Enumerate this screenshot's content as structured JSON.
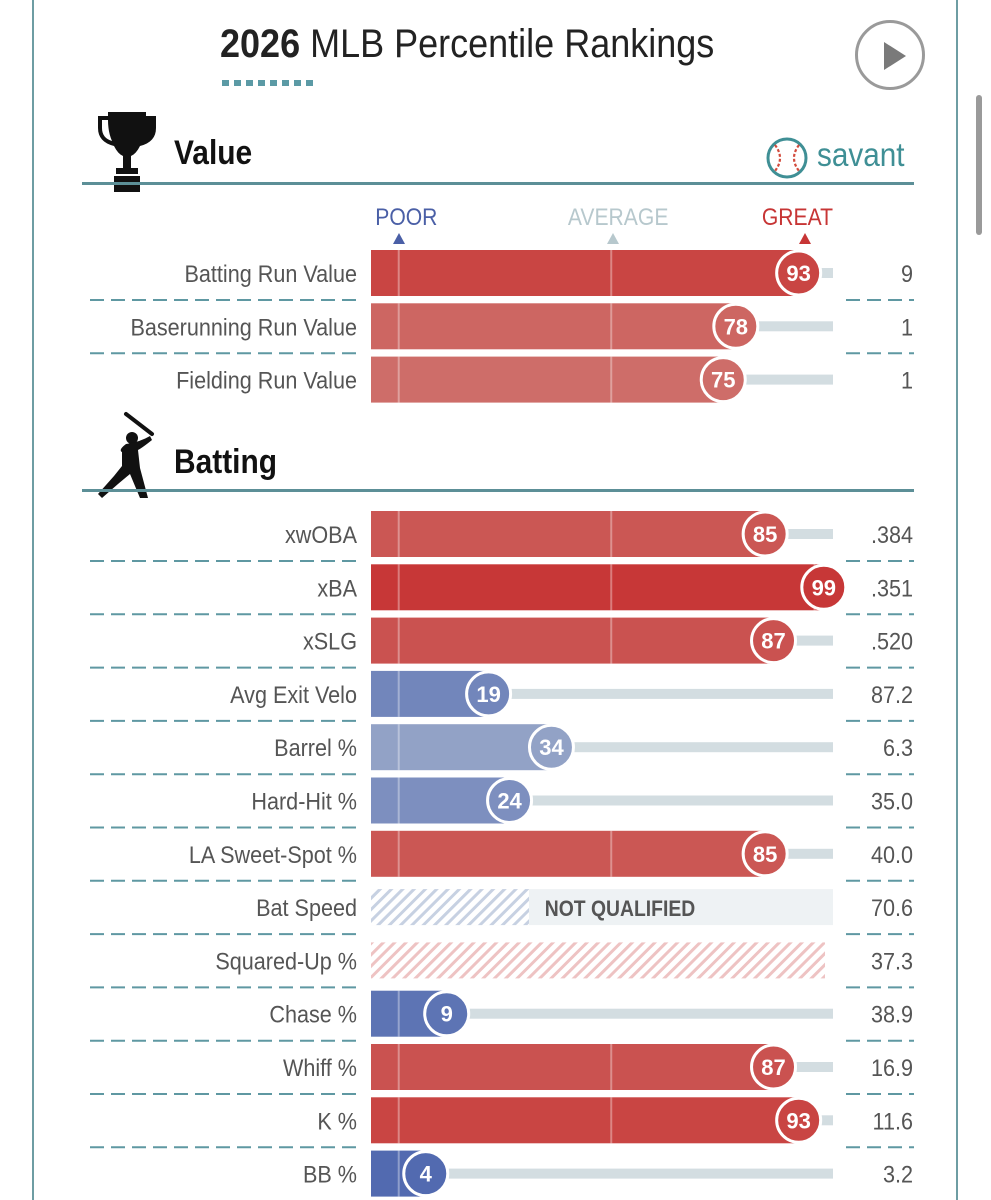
{
  "header": {
    "title_year": "2026",
    "title_rest": " MLB Percentile Rankings",
    "play_icon": "play-icon"
  },
  "brand": {
    "name": "savant",
    "icon": "baseball-icon"
  },
  "scale": {
    "poor": "POOR",
    "average": "AVERAGE",
    "great": "GREAT"
  },
  "colors": {
    "great": "#c73535",
    "poor": "#4a63ad",
    "track": "#d3dde1",
    "rule": "#5c8f97",
    "dash": "#5f98a2",
    "label": "#555555"
  },
  "chart_data": {
    "type": "bar",
    "orientation": "horizontal",
    "xlim": [
      0,
      100
    ],
    "sections": [
      {
        "name": "Value",
        "icon": "trophy-icon",
        "metrics": [
          {
            "label": "Batting Run Value",
            "percentile": 93,
            "value": "9"
          },
          {
            "label": "Baserunning Run Value",
            "percentile": 78,
            "value": "1"
          },
          {
            "label": "Fielding Run Value",
            "percentile": 75,
            "value": "1"
          }
        ]
      },
      {
        "name": "Batting",
        "icon": "batter-icon",
        "metrics": [
          {
            "label": "xwOBA",
            "percentile": 85,
            "value": ".384"
          },
          {
            "label": "xBA",
            "percentile": 99,
            "value": ".351"
          },
          {
            "label": "xSLG",
            "percentile": 87,
            "value": ".520"
          },
          {
            "label": "Avg Exit Velo",
            "percentile": 19,
            "value": "87.2"
          },
          {
            "label": "Barrel %",
            "percentile": 34,
            "value": "6.3"
          },
          {
            "label": "Hard-Hit %",
            "percentile": 24,
            "value": "35.0"
          },
          {
            "label": "LA Sweet-Spot %",
            "percentile": 85,
            "value": "40.0"
          },
          {
            "label": "Bat Speed",
            "percentile": null,
            "status": "NOT QUALIFIED",
            "value": "70.6"
          },
          {
            "label": "Squared-Up %",
            "percentile": null,
            "value": "37.3"
          },
          {
            "label": "Chase %",
            "percentile": 9,
            "value": "38.9"
          },
          {
            "label": "Whiff %",
            "percentile": 87,
            "value": "16.9"
          },
          {
            "label": "K %",
            "percentile": 93,
            "value": "11.6"
          },
          {
            "label": "BB %",
            "percentile": 4,
            "value": "3.2"
          }
        ]
      }
    ]
  }
}
